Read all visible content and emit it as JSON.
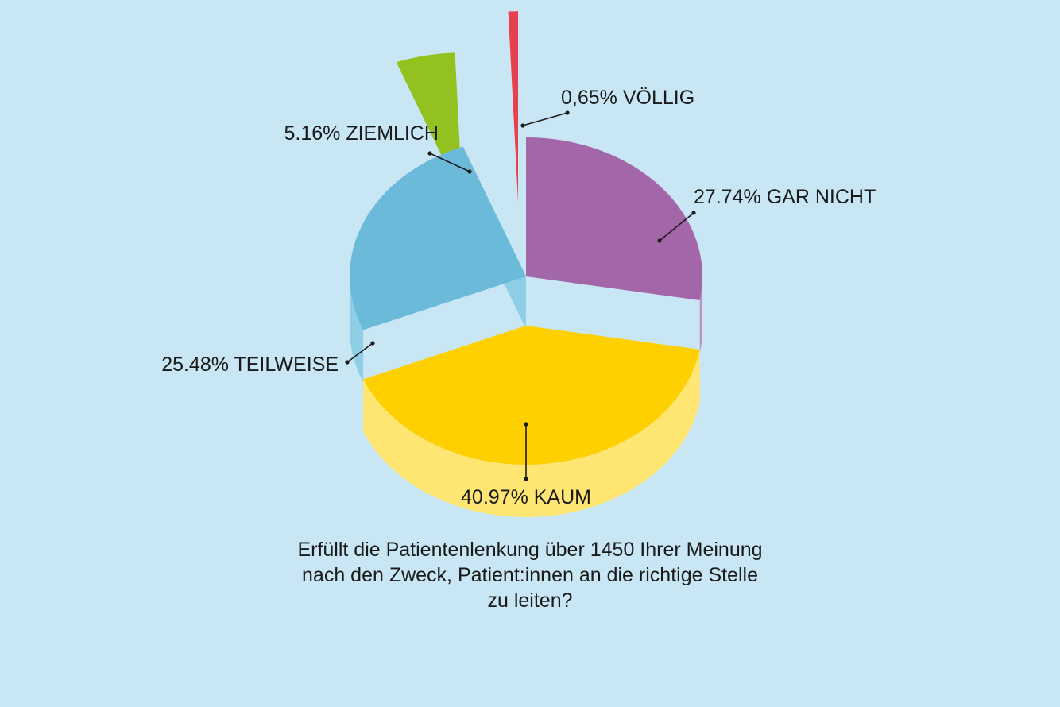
{
  "colors": {
    "background": "#c8e6f4"
  },
  "chart_data": {
    "type": "pie",
    "title": "",
    "style": "3d-exploded",
    "slices": [
      {
        "label": "27.74% GAR NICHT",
        "value": 27.74,
        "top": "#a366a8",
        "side": "#c08fc2"
      },
      {
        "label": "40.97% KAUM",
        "value": 40.97,
        "top": "#ffd000",
        "side": "#ffe672"
      },
      {
        "label": "25.48% TEILWEISE",
        "value": 25.48,
        "top": "#6bbad9",
        "side": "#8fcfe6"
      },
      {
        "label": "5.16% ZIEMLICH",
        "value": 5.16,
        "top": "#93c11f",
        "side": "#c6da74"
      },
      {
        "label": "0,65% VÖLLIG",
        "value": 0.65,
        "top": "#e8414e",
        "side": "#f2a3b3"
      }
    ]
  },
  "question": {
    "line1": "Erfüllt die Patientenlenkung über 1450 Ihrer Meinung",
    "line2": "nach den Zweck, Patient:innen an die richtige Stelle",
    "line3": "zu leiten?"
  }
}
